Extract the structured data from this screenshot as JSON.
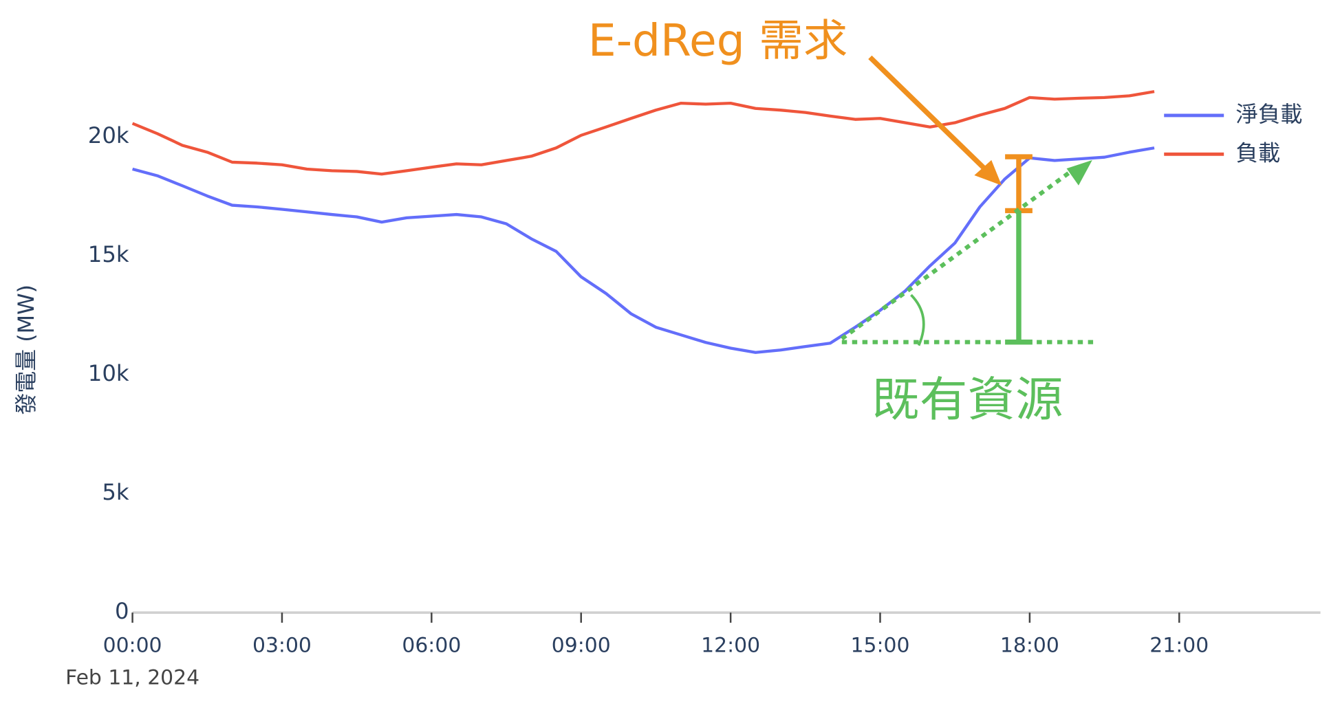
{
  "chart_data": {
    "type": "line",
    "y_axis_title": "發電量 (MW)",
    "x_date_label": "Feb 11, 2024",
    "x": [
      "00:00",
      "00:30",
      "01:00",
      "01:30",
      "02:00",
      "02:30",
      "03:00",
      "03:30",
      "04:00",
      "04:30",
      "05:00",
      "05:30",
      "06:00",
      "06:30",
      "07:00",
      "07:30",
      "08:00",
      "08:30",
      "09:00",
      "09:30",
      "10:00",
      "10:30",
      "11:00",
      "11:30",
      "12:00",
      "12:30",
      "13:00",
      "13:30",
      "14:00",
      "14:30",
      "15:00",
      "15:30",
      "16:00",
      "16:30",
      "17:00",
      "17:30",
      "18:00",
      "18:30",
      "19:00",
      "19:30",
      "20:00",
      "20:30"
    ],
    "series": [
      {
        "name": "淨負載",
        "color": "#636efa",
        "values": [
          18650,
          18370,
          17950,
          17520,
          17130,
          17060,
          16960,
          16850,
          16740,
          16640,
          16420,
          16600,
          16670,
          16740,
          16640,
          16350,
          15720,
          15190,
          14120,
          13420,
          12570,
          12000,
          11680,
          11360,
          11120,
          10940,
          11040,
          11190,
          11330,
          12000,
          12710,
          13520,
          14580,
          15540,
          17060,
          18230,
          19120,
          19010,
          19080,
          19150,
          19360,
          19540
        ]
      },
      {
        "name": "負載",
        "color": "#ef553b",
        "values": [
          20570,
          20140,
          19650,
          19360,
          18940,
          18900,
          18830,
          18650,
          18580,
          18550,
          18440,
          18580,
          18730,
          18870,
          18830,
          19010,
          19190,
          19540,
          20070,
          20420,
          20780,
          21130,
          21420,
          21380,
          21420,
          21200,
          21130,
          21030,
          20880,
          20740,
          20780,
          20600,
          20420,
          20600,
          20920,
          21200,
          21660,
          21590,
          21630,
          21660,
          21730,
          21910
        ]
      }
    ],
    "xlim": [
      "00:00",
      "23:50"
    ],
    "xticks": [
      "00:00",
      "03:00",
      "06:00",
      "09:00",
      "12:00",
      "15:00",
      "18:00",
      "21:00"
    ],
    "ylim": [
      0,
      22500
    ],
    "yticks": [
      {
        "value": 0,
        "label": "0"
      },
      {
        "value": 5000,
        "label": "5k"
      },
      {
        "value": 10000,
        "label": "10k"
      },
      {
        "value": 15000,
        "label": "15k"
      },
      {
        "value": 20000,
        "label": "20k"
      }
    ],
    "legend": "top-right",
    "annotations": [
      "E-dReg 需求",
      "既有資源"
    ]
  }
}
